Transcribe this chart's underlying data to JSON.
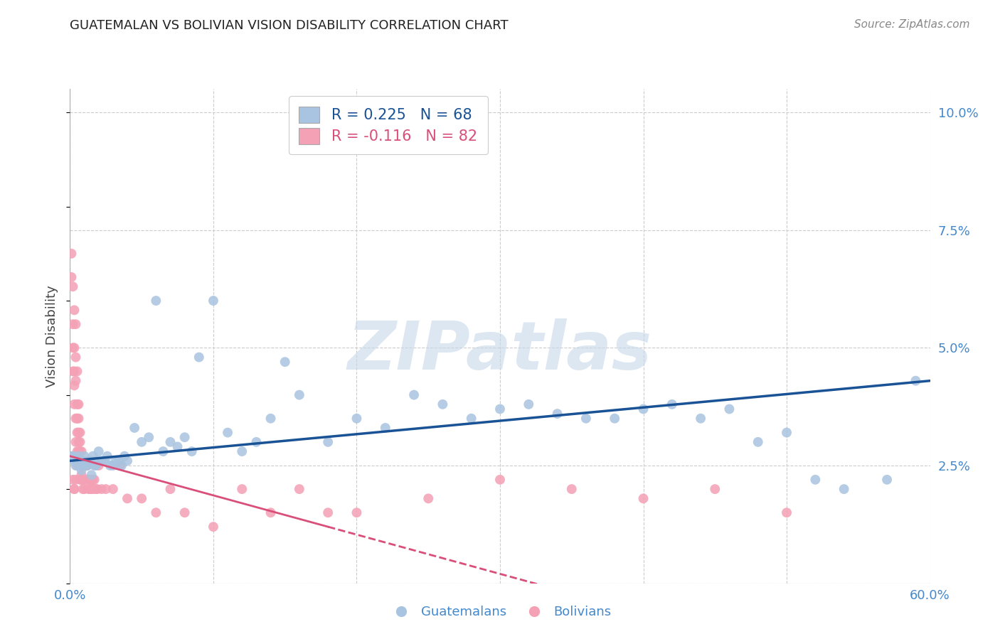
{
  "title": "GUATEMALAN VS BOLIVIAN VISION DISABILITY CORRELATION CHART",
  "source": "Source: ZipAtlas.com",
  "ylabel": "Vision Disability",
  "xlim": [
    0.0,
    0.6
  ],
  "ylim": [
    0.0,
    0.105
  ],
  "xticks": [
    0.0,
    0.1,
    0.2,
    0.3,
    0.4,
    0.5,
    0.6
  ],
  "yticks": [
    0.0,
    0.025,
    0.05,
    0.075,
    0.1
  ],
  "yticklabels": [
    "",
    "2.5%",
    "5.0%",
    "7.5%",
    "10.0%"
  ],
  "guatemalan_color": "#a8c4e0",
  "bolivian_color": "#f4a0b5",
  "guatemalan_line_color": "#1a5296",
  "bolivian_line_color": "#d94f7a",
  "R_guatemalan": 0.225,
  "N_guatemalan": 68,
  "R_bolivian": -0.116,
  "N_bolivian": 82,
  "legend_label_1": "Guatemalans",
  "legend_label_2": "Bolivians",
  "background_color": "#ffffff",
  "grid_color": "#cccccc",
  "tick_color": "#4488cc",
  "guatemalan_x": [
    0.001,
    0.002,
    0.003,
    0.004,
    0.005,
    0.006,
    0.007,
    0.008,
    0.009,
    0.01,
    0.011,
    0.012,
    0.013,
    0.014,
    0.015,
    0.016,
    0.017,
    0.018,
    0.019,
    0.02,
    0.022,
    0.024,
    0.026,
    0.028,
    0.03,
    0.032,
    0.034,
    0.036,
    0.038,
    0.04,
    0.045,
    0.05,
    0.055,
    0.06,
    0.065,
    0.07,
    0.075,
    0.08,
    0.085,
    0.09,
    0.1,
    0.11,
    0.12,
    0.13,
    0.14,
    0.15,
    0.16,
    0.18,
    0.2,
    0.22,
    0.24,
    0.26,
    0.28,
    0.3,
    0.32,
    0.34,
    0.36,
    0.38,
    0.4,
    0.42,
    0.44,
    0.46,
    0.48,
    0.5,
    0.52,
    0.54,
    0.57,
    0.59
  ],
  "guatemalan_y": [
    0.027,
    0.027,
    0.026,
    0.025,
    0.026,
    0.027,
    0.025,
    0.024,
    0.026,
    0.027,
    0.025,
    0.025,
    0.026,
    0.026,
    0.023,
    0.027,
    0.025,
    0.025,
    0.026,
    0.028,
    0.026,
    0.026,
    0.027,
    0.025,
    0.025,
    0.026,
    0.026,
    0.025,
    0.027,
    0.026,
    0.033,
    0.03,
    0.031,
    0.06,
    0.028,
    0.03,
    0.029,
    0.031,
    0.028,
    0.048,
    0.06,
    0.032,
    0.028,
    0.03,
    0.035,
    0.047,
    0.04,
    0.03,
    0.035,
    0.033,
    0.04,
    0.038,
    0.035,
    0.037,
    0.038,
    0.036,
    0.035,
    0.035,
    0.037,
    0.038,
    0.035,
    0.037,
    0.03,
    0.032,
    0.022,
    0.02,
    0.022,
    0.043
  ],
  "bolivian_x": [
    0.001,
    0.001,
    0.002,
    0.002,
    0.002,
    0.002,
    0.003,
    0.003,
    0.003,
    0.003,
    0.003,
    0.004,
    0.004,
    0.004,
    0.004,
    0.004,
    0.005,
    0.005,
    0.005,
    0.005,
    0.005,
    0.005,
    0.006,
    0.006,
    0.006,
    0.006,
    0.006,
    0.007,
    0.007,
    0.007,
    0.007,
    0.007,
    0.008,
    0.008,
    0.008,
    0.008,
    0.009,
    0.009,
    0.009,
    0.01,
    0.01,
    0.01,
    0.011,
    0.011,
    0.012,
    0.012,
    0.013,
    0.013,
    0.014,
    0.015,
    0.015,
    0.016,
    0.016,
    0.017,
    0.018,
    0.019,
    0.02,
    0.022,
    0.025,
    0.03,
    0.035,
    0.04,
    0.05,
    0.06,
    0.07,
    0.08,
    0.1,
    0.12,
    0.14,
    0.16,
    0.18,
    0.2,
    0.25,
    0.3,
    0.35,
    0.4,
    0.45,
    0.5,
    0.002,
    0.003,
    0.003,
    0.004
  ],
  "bolivian_y": [
    0.065,
    0.07,
    0.055,
    0.063,
    0.05,
    0.045,
    0.058,
    0.05,
    0.045,
    0.042,
    0.038,
    0.055,
    0.048,
    0.043,
    0.035,
    0.03,
    0.045,
    0.038,
    0.035,
    0.032,
    0.028,
    0.025,
    0.03,
    0.038,
    0.028,
    0.035,
    0.032,
    0.028,
    0.032,
    0.025,
    0.03,
    0.022,
    0.025,
    0.028,
    0.023,
    0.022,
    0.025,
    0.022,
    0.02,
    0.022,
    0.025,
    0.02,
    0.025,
    0.022,
    0.022,
    0.025,
    0.022,
    0.02,
    0.02,
    0.022,
    0.02,
    0.02,
    0.022,
    0.022,
    0.02,
    0.02,
    0.025,
    0.02,
    0.02,
    0.02,
    0.025,
    0.018,
    0.018,
    0.015,
    0.02,
    0.015,
    0.012,
    0.02,
    0.015,
    0.02,
    0.015,
    0.015,
    0.018,
    0.022,
    0.02,
    0.018,
    0.02,
    0.015,
    0.022,
    0.02,
    0.02,
    0.022
  ],
  "watermark_text": "ZIPatlas",
  "watermark_color": "#c5d8ea",
  "watermark_alpha": 0.6
}
